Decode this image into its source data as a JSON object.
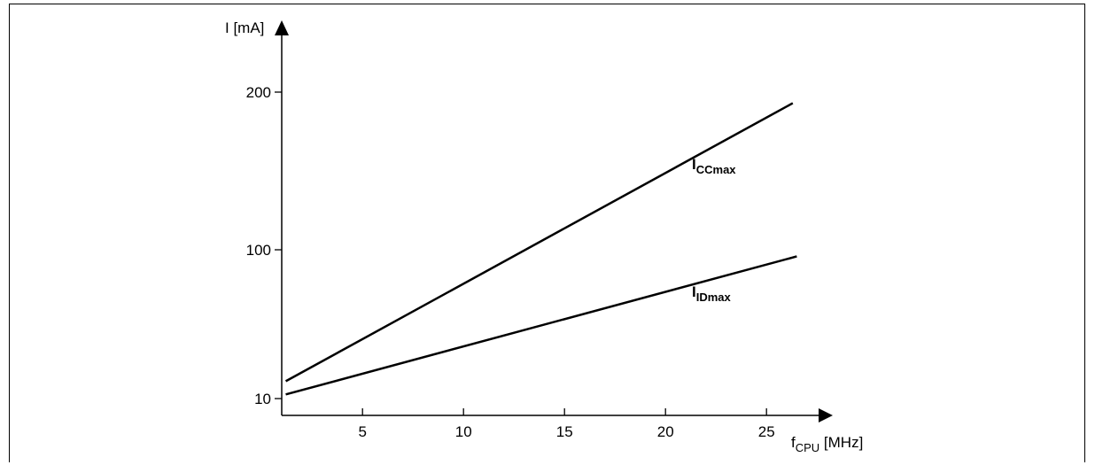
{
  "chart_data": {
    "type": "line",
    "title": "",
    "xlabel": {
      "base": "f",
      "sub": "CPU",
      "unit": " [MHz]"
    },
    "ylabel": "I [mA]",
    "x_ticks": [
      "5",
      "10",
      "15",
      "20",
      "25"
    ],
    "y_ticks": [
      "10",
      "100",
      "200"
    ],
    "grid": false,
    "series": [
      {
        "name": {
          "base": "I",
          "sub": "CCmax"
        },
        "x": [
          1.2,
          26.3
        ],
        "y": [
          20.5,
          193
        ]
      },
      {
        "name": {
          "base": "I",
          "sub": "IDmax"
        },
        "x": [
          1.2,
          26.5
        ],
        "y": [
          12.5,
          96
        ]
      }
    ]
  }
}
